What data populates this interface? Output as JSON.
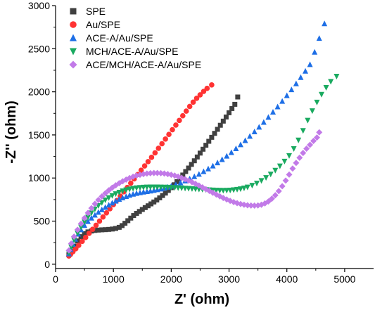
{
  "chart_data": {
    "type": "scatter",
    "xlabel": "Z' (ohm)",
    "ylabel": "-Z'' (ohm)",
    "xlim": [
      0,
      5500
    ],
    "ylim": [
      -50,
      3000
    ],
    "xticks": [
      0,
      1000,
      2000,
      3000,
      4000,
      5000
    ],
    "yticks": [
      0,
      500,
      1000,
      1500,
      2000,
      2500,
      3000
    ],
    "legend_position": "top-left",
    "grid": false,
    "series": [
      {
        "name": "SPE",
        "marker": "square",
        "color": "#404040",
        "points": [
          [
            230,
            110
          ],
          [
            270,
            150
          ],
          [
            320,
            210
          ],
          [
            380,
            270
          ],
          [
            440,
            320
          ],
          [
            500,
            355
          ],
          [
            560,
            375
          ],
          [
            620,
            385
          ],
          [
            680,
            392
          ],
          [
            740,
            396
          ],
          [
            800,
            399
          ],
          [
            860,
            401
          ],
          [
            920,
            404
          ],
          [
            980,
            408
          ],
          [
            1040,
            415
          ],
          [
            1100,
            428
          ],
          [
            1150,
            448
          ],
          [
            1200,
            475
          ],
          [
            1250,
            505
          ],
          [
            1300,
            535
          ],
          [
            1350,
            565
          ],
          [
            1400,
            590
          ],
          [
            1450,
            612
          ],
          [
            1500,
            635
          ],
          [
            1550,
            657
          ],
          [
            1600,
            678
          ],
          [
            1650,
            700
          ],
          [
            1700,
            722
          ],
          [
            1750,
            745
          ],
          [
            1800,
            770
          ],
          [
            1850,
            797
          ],
          [
            1900,
            825
          ],
          [
            1950,
            856
          ],
          [
            2000,
            888
          ],
          [
            2050,
            922
          ],
          [
            2100,
            958
          ],
          [
            2150,
            996
          ],
          [
            2200,
            1035
          ],
          [
            2250,
            1075
          ],
          [
            2300,
            1116
          ],
          [
            2350,
            1158
          ],
          [
            2400,
            1200
          ],
          [
            2450,
            1244
          ],
          [
            2500,
            1289
          ],
          [
            2550,
            1334
          ],
          [
            2600,
            1380
          ],
          [
            2650,
            1426
          ],
          [
            2700,
            1472
          ],
          [
            2750,
            1518
          ],
          [
            2800,
            1565
          ],
          [
            2850,
            1612
          ],
          [
            2900,
            1660
          ],
          [
            2950,
            1708
          ],
          [
            3000,
            1757
          ],
          [
            3050,
            1806
          ],
          [
            3100,
            1855
          ],
          [
            3150,
            1940
          ]
        ]
      },
      {
        "name": "Au/SPE",
        "marker": "circle",
        "color": "#ff3333",
        "points": [
          [
            230,
            95
          ],
          [
            260,
            115
          ],
          [
            300,
            145
          ],
          [
            350,
            180
          ],
          [
            400,
            220
          ],
          [
            460,
            265
          ],
          [
            520,
            310
          ],
          [
            580,
            358
          ],
          [
            640,
            405
          ],
          [
            700,
            452
          ],
          [
            760,
            500
          ],
          [
            820,
            548
          ],
          [
            880,
            596
          ],
          [
            940,
            644
          ],
          [
            1000,
            692
          ],
          [
            1060,
            740
          ],
          [
            1120,
            790
          ],
          [
            1180,
            840
          ],
          [
            1240,
            890
          ],
          [
            1300,
            940
          ],
          [
            1360,
            990
          ],
          [
            1420,
            1040
          ],
          [
            1480,
            1090
          ],
          [
            1540,
            1140
          ],
          [
            1600,
            1190
          ],
          [
            1660,
            1240
          ],
          [
            1720,
            1292
          ],
          [
            1780,
            1345
          ],
          [
            1840,
            1398
          ],
          [
            1900,
            1452
          ],
          [
            1960,
            1506
          ],
          [
            2020,
            1560
          ],
          [
            2080,
            1614
          ],
          [
            2140,
            1668
          ],
          [
            2200,
            1722
          ],
          [
            2260,
            1776
          ],
          [
            2320,
            1830
          ],
          [
            2380,
            1880
          ],
          [
            2440,
            1925
          ],
          [
            2500,
            1965
          ],
          [
            2560,
            2005
          ],
          [
            2620,
            2040
          ],
          [
            2700,
            2080
          ]
        ]
      },
      {
        "name": "ACE-A/Au/SPE",
        "marker": "triangle-up",
        "color": "#1e6fe6",
        "points": [
          [
            230,
            120
          ],
          [
            260,
            170
          ],
          [
            300,
            230
          ],
          [
            340,
            290
          ],
          [
            390,
            350
          ],
          [
            440,
            400
          ],
          [
            500,
            450
          ],
          [
            560,
            495
          ],
          [
            620,
            535
          ],
          [
            680,
            570
          ],
          [
            740,
            602
          ],
          [
            800,
            632
          ],
          [
            860,
            660
          ],
          [
            920,
            686
          ],
          [
            980,
            710
          ],
          [
            1040,
            732
          ],
          [
            1100,
            752
          ],
          [
            1160,
            770
          ],
          [
            1220,
            786
          ],
          [
            1280,
            800
          ],
          [
            1340,
            812
          ],
          [
            1400,
            822
          ],
          [
            1460,
            830
          ],
          [
            1520,
            837
          ],
          [
            1580,
            843
          ],
          [
            1640,
            849
          ],
          [
            1700,
            856
          ],
          [
            1760,
            864
          ],
          [
            1820,
            873
          ],
          [
            1880,
            883
          ],
          [
            1940,
            894
          ],
          [
            2000,
            906
          ],
          [
            2080,
            924
          ],
          [
            2160,
            944
          ],
          [
            2240,
            966
          ],
          [
            2320,
            990
          ],
          [
            2400,
            1016
          ],
          [
            2480,
            1044
          ],
          [
            2560,
            1074
          ],
          [
            2640,
            1106
          ],
          [
            2720,
            1140
          ],
          [
            2800,
            1176
          ],
          [
            2880,
            1214
          ],
          [
            2960,
            1254
          ],
          [
            3040,
            1296
          ],
          [
            3120,
            1340
          ],
          [
            3200,
            1386
          ],
          [
            3280,
            1434
          ],
          [
            3360,
            1484
          ],
          [
            3440,
            1536
          ],
          [
            3520,
            1590
          ],
          [
            3600,
            1646
          ],
          [
            3680,
            1704
          ],
          [
            3760,
            1764
          ],
          [
            3840,
            1826
          ],
          [
            3920,
            1890
          ],
          [
            4000,
            1956
          ],
          [
            4080,
            2024
          ],
          [
            4160,
            2094
          ],
          [
            4240,
            2166
          ],
          [
            4320,
            2240
          ],
          [
            4400,
            2316
          ],
          [
            4480,
            2460
          ],
          [
            4560,
            2620
          ],
          [
            4650,
            2790
          ]
        ]
      },
      {
        "name": "MCH/ACE-A/Au/SPE",
        "marker": "triangle-down",
        "color": "#1aaa60",
        "points": [
          [
            230,
            130
          ],
          [
            270,
            200
          ],
          [
            320,
            280
          ],
          [
            380,
            360
          ],
          [
            440,
            430
          ],
          [
            500,
            490
          ],
          [
            560,
            545
          ],
          [
            620,
            595
          ],
          [
            680,
            640
          ],
          [
            740,
            680
          ],
          [
            800,
            715
          ],
          [
            860,
            745
          ],
          [
            920,
            772
          ],
          [
            980,
            796
          ],
          [
            1040,
            817
          ],
          [
            1100,
            835
          ],
          [
            1160,
            850
          ],
          [
            1220,
            862
          ],
          [
            1280,
            872
          ],
          [
            1340,
            880
          ],
          [
            1400,
            886
          ],
          [
            1460,
            890
          ],
          [
            1520,
            893
          ],
          [
            1580,
            895
          ],
          [
            1640,
            896
          ],
          [
            1700,
            896
          ],
          [
            1760,
            896
          ],
          [
            1820,
            895
          ],
          [
            1880,
            894
          ],
          [
            1940,
            893
          ],
          [
            2000,
            891
          ],
          [
            2060,
            889
          ],
          [
            2120,
            887
          ],
          [
            2180,
            885
          ],
          [
            2240,
            882
          ],
          [
            2300,
            880
          ],
          [
            2360,
            877
          ],
          [
            2420,
            874
          ],
          [
            2480,
            871
          ],
          [
            2540,
            868
          ],
          [
            2600,
            865
          ],
          [
            2660,
            862
          ],
          [
            2720,
            860
          ],
          [
            2780,
            858
          ],
          [
            2840,
            857
          ],
          [
            2900,
            856
          ],
          [
            2960,
            857
          ],
          [
            3020,
            859
          ],
          [
            3080,
            863
          ],
          [
            3140,
            868
          ],
          [
            3200,
            875
          ],
          [
            3260,
            884
          ],
          [
            3320,
            895
          ],
          [
            3400,
            915
          ],
          [
            3480,
            940
          ],
          [
            3560,
            970
          ],
          [
            3640,
            1005
          ],
          [
            3720,
            1045
          ],
          [
            3800,
            1090
          ],
          [
            3880,
            1140
          ],
          [
            3960,
            1195
          ],
          [
            4040,
            1260
          ],
          [
            4120,
            1340
          ],
          [
            4200,
            1440
          ],
          [
            4280,
            1550
          ],
          [
            4360,
            1670
          ],
          [
            4440,
            1780
          ],
          [
            4520,
            1880
          ],
          [
            4600,
            1970
          ],
          [
            4680,
            2050
          ],
          [
            4760,
            2120
          ],
          [
            4860,
            2180
          ]
        ]
      },
      {
        "name": "ACE/MCH/ACE-A/Au/SPE",
        "marker": "diamond",
        "color": "#c27ae8",
        "points": [
          [
            230,
            160
          ],
          [
            270,
            240
          ],
          [
            320,
            320
          ],
          [
            380,
            400
          ],
          [
            440,
            470
          ],
          [
            500,
            535
          ],
          [
            560,
            595
          ],
          [
            620,
            650
          ],
          [
            680,
            700
          ],
          [
            740,
            745
          ],
          [
            800,
            786
          ],
          [
            860,
            823
          ],
          [
            920,
            857
          ],
          [
            980,
            888
          ],
          [
            1040,
            915
          ],
          [
            1100,
            940
          ],
          [
            1160,
            962
          ],
          [
            1220,
            982
          ],
          [
            1280,
            1000
          ],
          [
            1340,
            1015
          ],
          [
            1400,
            1028
          ],
          [
            1460,
            1038
          ],
          [
            1520,
            1046
          ],
          [
            1580,
            1052
          ],
          [
            1640,
            1056
          ],
          [
            1700,
            1058
          ],
          [
            1760,
            1058
          ],
          [
            1820,
            1056
          ],
          [
            1880,
            1052
          ],
          [
            1940,
            1046
          ],
          [
            2000,
            1038
          ],
          [
            2060,
            1028
          ],
          [
            2120,
            1016
          ],
          [
            2180,
            1002
          ],
          [
            2240,
            987
          ],
          [
            2300,
            970
          ],
          [
            2360,
            952
          ],
          [
            2420,
            933
          ],
          [
            2480,
            913
          ],
          [
            2540,
            892
          ],
          [
            2600,
            871
          ],
          [
            2660,
            850
          ],
          [
            2720,
            829
          ],
          [
            2780,
            808
          ],
          [
            2840,
            788
          ],
          [
            2900,
            769
          ],
          [
            2960,
            751
          ],
          [
            3020,
            735
          ],
          [
            3080,
            721
          ],
          [
            3140,
            708
          ],
          [
            3200,
            698
          ],
          [
            3260,
            690
          ],
          [
            3320,
            684
          ],
          [
            3380,
            681
          ],
          [
            3440,
            680
          ],
          [
            3500,
            682
          ],
          [
            3560,
            690
          ],
          [
            3620,
            705
          ],
          [
            3680,
            728
          ],
          [
            3740,
            760
          ],
          [
            3800,
            800
          ],
          [
            3860,
            848
          ],
          [
            3920,
            905
          ],
          [
            3980,
            970
          ],
          [
            4040,
            1040
          ],
          [
            4100,
            1110
          ],
          [
            4160,
            1175
          ],
          [
            4220,
            1235
          ],
          [
            4280,
            1290
          ],
          [
            4340,
            1340
          ],
          [
            4400,
            1385
          ],
          [
            4460,
            1430
          ],
          [
            4520,
            1470
          ],
          [
            4560,
            1530
          ]
        ]
      }
    ]
  }
}
